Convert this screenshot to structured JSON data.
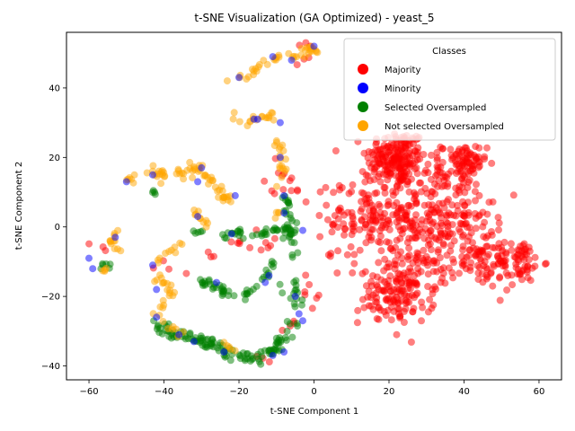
{
  "chart_data": {
    "type": "scatter",
    "title": "t-SNE Visualization (GA Optimized) - yeast_5",
    "xlabel": "t-SNE Component 1",
    "ylabel": "t-SNE Component 2",
    "xlim": [
      -66,
      66
    ],
    "ylim": [
      -44,
      56
    ],
    "xticks": [
      -60,
      -40,
      -20,
      0,
      20,
      40,
      60
    ],
    "yticks": [
      -40,
      -20,
      0,
      20,
      40
    ],
    "grid": false,
    "legend": {
      "title": "Classes",
      "placement": "top-right",
      "entries": [
        "Majority",
        "Minority",
        "Selected Oversampled",
        "Not selected Oversampled"
      ]
    },
    "series": [
      {
        "name": "Majority",
        "color": "#ff0000",
        "clusters": [
          {
            "cx": 22,
            "cy": 20,
            "sx": 4,
            "sy": 4,
            "n": 180
          },
          {
            "cx": 14,
            "cy": 3,
            "sx": 5,
            "sy": 7,
            "n": 130
          },
          {
            "cx": 27,
            "cy": 5,
            "sx": 5,
            "sy": 8,
            "n": 140
          },
          {
            "cx": 22,
            "cy": -20,
            "sx": 5,
            "sy": 4,
            "n": 120
          },
          {
            "cx": 28,
            "cy": -10,
            "sx": 4,
            "sy": 6,
            "n": 70
          },
          {
            "cx": 40,
            "cy": 18,
            "sx": 3,
            "sy": 3,
            "n": 80
          },
          {
            "cx": 38,
            "cy": 3,
            "sx": 5,
            "sy": 6,
            "n": 100
          },
          {
            "cx": 45,
            "cy": -8,
            "sx": 5,
            "sy": 5,
            "n": 90
          },
          {
            "cx": 55,
            "cy": -10,
            "sx": 3,
            "sy": 3,
            "n": 55
          },
          {
            "cx": 7,
            "cy": 11,
            "sx": 0.5,
            "sy": 0.5,
            "n": 3
          },
          {
            "cx": 4,
            "cy": -8,
            "sx": 0.6,
            "sy": 0.4,
            "n": 3
          },
          {
            "cx": -8,
            "cy": 14,
            "sx": 2,
            "sy": 4,
            "n": 8
          },
          {
            "cx": -5,
            "cy": 10,
            "sx": 2,
            "sy": 1.5,
            "n": 6
          },
          {
            "cx": -2,
            "cy": 48,
            "sx": 1.5,
            "sy": 3,
            "n": 6
          },
          {
            "cx": -15,
            "cy": -6,
            "sx": 3,
            "sy": 1.5,
            "n": 5
          },
          {
            "cx": -21,
            "cy": -4,
            "sx": 1,
            "sy": 1,
            "n": 3
          },
          {
            "cx": -8,
            "cy": -28,
            "sx": 2,
            "sy": 2,
            "n": 4
          },
          {
            "cx": -1,
            "cy": -18,
            "sx": 1.5,
            "sy": 3,
            "n": 5
          },
          {
            "cx": -36,
            "cy": -11,
            "sx": 3,
            "sy": 1.5,
            "n": 4
          },
          {
            "cx": -13,
            "cy": -5,
            "sx": 2,
            "sy": 2,
            "n": 3
          },
          {
            "cx": -14,
            "cy": -38,
            "sx": 1.5,
            "sy": 1,
            "n": 3
          },
          {
            "cx": -56,
            "cy": -6,
            "sx": 2,
            "sy": 1,
            "n": 3
          },
          {
            "cx": -28,
            "cy": -8,
            "sx": 1,
            "sy": 1,
            "n": 3
          },
          {
            "cx": 1,
            "cy": -20,
            "sx": 0.8,
            "sy": 0.8,
            "n": 2
          }
        ]
      },
      {
        "name": "Minority",
        "color": "#0000ff",
        "points": [
          [
            -60,
            -9
          ],
          [
            -59,
            -12
          ],
          [
            -53,
            -3
          ],
          [
            -50,
            13
          ],
          [
            -43,
            15
          ],
          [
            -43,
            -11
          ],
          [
            -42,
            -18
          ],
          [
            -42,
            -26
          ],
          [
            -36,
            -31
          ],
          [
            -32,
            -33
          ],
          [
            -31,
            13
          ],
          [
            -31,
            3
          ],
          [
            -30,
            17
          ],
          [
            -26,
            -16
          ],
          [
            -24,
            -36
          ],
          [
            -22,
            -2
          ],
          [
            -21,
            9
          ],
          [
            -20,
            43
          ],
          [
            -16,
            31
          ],
          [
            -15,
            31
          ],
          [
            -13,
            -16
          ],
          [
            -12,
            -14
          ],
          [
            -11,
            49
          ],
          [
            -11,
            -37
          ],
          [
            -9,
            20
          ],
          [
            -9,
            30
          ],
          [
            -8,
            9
          ],
          [
            -8,
            4
          ],
          [
            -8,
            -36
          ],
          [
            -6,
            48
          ],
          [
            -5,
            -20
          ],
          [
            -4,
            -25
          ],
          [
            -3,
            -1
          ],
          [
            -3,
            -27
          ],
          [
            0,
            52
          ]
        ]
      },
      {
        "name": "Selected Oversampled",
        "color": "#008000",
        "curves": [
          {
            "points": [
              [
                -43,
                -28
              ],
              [
                -35,
                -31
              ],
              [
                -28,
                -33
              ],
              [
                -22,
                -37
              ],
              [
                -16,
                -38
              ],
              [
                -12,
                -36
              ],
              [
                -8,
                -32
              ],
              [
                -5,
                -27
              ]
            ],
            "n": 120,
            "jitter": 0.9
          },
          {
            "points": [
              [
                -30,
                -15
              ],
              [
                -25,
                -18
              ],
              [
                -20,
                -21
              ],
              [
                -16,
                -18
              ],
              [
                -13,
                -14
              ],
              [
                -11,
                -10
              ]
            ],
            "n": 45,
            "jitter": 0.7
          },
          {
            "points": [
              [
                -26,
                -2
              ],
              [
                -20,
                -2
              ],
              [
                -16,
                -3
              ],
              [
                -12,
                -1
              ],
              [
                -8,
                0
              ],
              [
                -4,
                -1
              ]
            ],
            "n": 40,
            "jitter": 0.6
          },
          {
            "points": [
              [
                -8,
                6
              ],
              [
                -6,
                2
              ],
              [
                -7,
                -3
              ],
              [
                -5,
                -8
              ]
            ],
            "n": 20,
            "jitter": 0.6
          },
          {
            "points": [
              [
                -10,
                9
              ],
              [
                -8,
                8
              ],
              [
                -6,
                7
              ]
            ],
            "n": 8,
            "jitter": 0.6
          },
          {
            "points": [
              [
                -9,
                -17
              ],
              [
                -6,
                -21
              ],
              [
                -4,
                -23
              ],
              [
                -5,
                -15
              ]
            ],
            "n": 15,
            "jitter": 0.6
          },
          {
            "points": [
              [
                -58,
                -11
              ],
              [
                -55,
                -12
              ]
            ],
            "n": 6,
            "jitter": 0.5
          },
          {
            "points": [
              [
                -33,
                -2
              ],
              [
                -30,
                -1
              ]
            ],
            "n": 5,
            "jitter": 0.5
          },
          {
            "points": [
              [
                -43,
                10
              ],
              [
                -42,
                9
              ]
            ],
            "n": 4,
            "jitter": 0.4
          }
        ]
      },
      {
        "name": "Not selected Oversampled",
        "color": "#ffa500",
        "curves": [
          {
            "points": [
              [
                -37,
                15
              ],
              [
                -32,
                17
              ],
              [
                -28,
                14
              ],
              [
                -24,
                9
              ],
              [
                -21,
                7
              ]
            ],
            "n": 45,
            "jitter": 0.9
          },
          {
            "points": [
              [
                -44,
                16
              ],
              [
                -42,
                15
              ],
              [
                -40,
                14
              ]
            ],
            "n": 15,
            "jitter": 1
          },
          {
            "points": [
              [
                -50,
                14
              ],
              [
                -48,
                13
              ]
            ],
            "n": 6,
            "jitter": 0.6
          },
          {
            "points": [
              [
                -32,
                5
              ],
              [
                -30,
                2
              ],
              [
                -28,
                0
              ]
            ],
            "n": 10,
            "jitter": 0.6
          },
          {
            "points": [
              [
                -52,
                -1
              ],
              [
                -54,
                -4
              ],
              [
                -52,
                -7
              ]
            ],
            "n": 12,
            "jitter": 0.6
          },
          {
            "points": [
              [
                -42,
                -10
              ],
              [
                -38,
                -7
              ],
              [
                -35,
                -5
              ]
            ],
            "n": 10,
            "jitter": 0.6
          },
          {
            "points": [
              [
                -44,
                -13
              ],
              [
                -40,
                -16
              ],
              [
                -38,
                -20
              ],
              [
                -42,
                -23
              ],
              [
                -44,
                -26
              ]
            ],
            "n": 20,
            "jitter": 0.7
          },
          {
            "points": [
              [
                -41,
                -26
              ],
              [
                -38,
                -29
              ],
              [
                -34,
                -31
              ]
            ],
            "n": 8,
            "jitter": 0.5
          },
          {
            "points": [
              [
                -24,
                -33
              ],
              [
                -20,
                -36
              ]
            ],
            "n": 5,
            "jitter": 0.5
          },
          {
            "points": [
              [
                -22,
                42
              ],
              [
                -20,
                42
              ],
              [
                -16,
                44
              ],
              [
                -13,
                48
              ],
              [
                -8,
                49
              ],
              [
                -4,
                49
              ],
              [
                -1,
                52
              ],
              [
                1,
                50
              ]
            ],
            "n": 40,
            "jitter": 0.8
          },
          {
            "points": [
              [
                -21,
                32
              ],
              [
                -18,
                30
              ],
              [
                -13,
                32
              ],
              [
                -10,
                30
              ]
            ],
            "n": 18,
            "jitter": 0.8
          },
          {
            "points": [
              [
                -10,
                26
              ],
              [
                -9,
                21
              ],
              [
                -8,
                17
              ],
              [
                -9,
                12
              ]
            ],
            "n": 18,
            "jitter": 0.8
          },
          {
            "points": [
              [
                -57,
                -12
              ],
              [
                -55,
                -13
              ]
            ],
            "n": 4,
            "jitter": 0.4
          },
          {
            "points": [
              [
                -10,
                4
              ],
              [
                -8,
                2
              ]
            ],
            "n": 4,
            "jitter": 0.5
          }
        ]
      }
    ]
  }
}
